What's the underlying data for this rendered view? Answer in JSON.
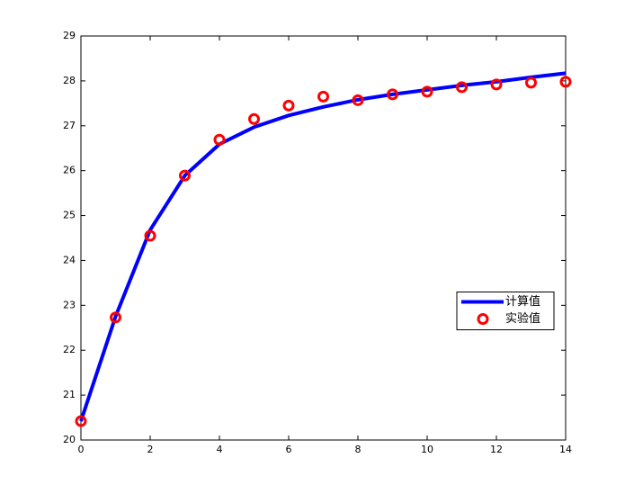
{
  "chart_data": {
    "type": "line",
    "x": [
      0,
      1,
      2,
      3,
      4,
      5,
      6,
      7,
      8,
      9,
      10,
      11,
      12,
      13,
      14
    ],
    "series": [
      {
        "name": "计算值",
        "type": "line",
        "color": "#0000ff",
        "values": [
          20.42,
          22.75,
          24.68,
          25.89,
          26.59,
          26.97,
          27.23,
          27.42,
          27.58,
          27.7,
          27.8,
          27.9,
          27.98,
          28.08,
          28.17
        ]
      },
      {
        "name": "实验值",
        "type": "scatter",
        "color": "#ff0000",
        "values": [
          20.42,
          22.73,
          24.55,
          25.89,
          26.69,
          27.15,
          27.45,
          27.65,
          27.57,
          27.7,
          27.76,
          27.86,
          27.92,
          27.96,
          27.98
        ]
      }
    ],
    "xlim": [
      0,
      14
    ],
    "xticks": [
      0,
      2,
      4,
      6,
      8,
      10,
      12,
      14
    ],
    "ylim": [
      20,
      29
    ],
    "yticks": [
      20,
      21,
      22,
      23,
      24,
      25,
      26,
      27,
      28,
      29
    ],
    "grid": false,
    "legend": "right"
  }
}
